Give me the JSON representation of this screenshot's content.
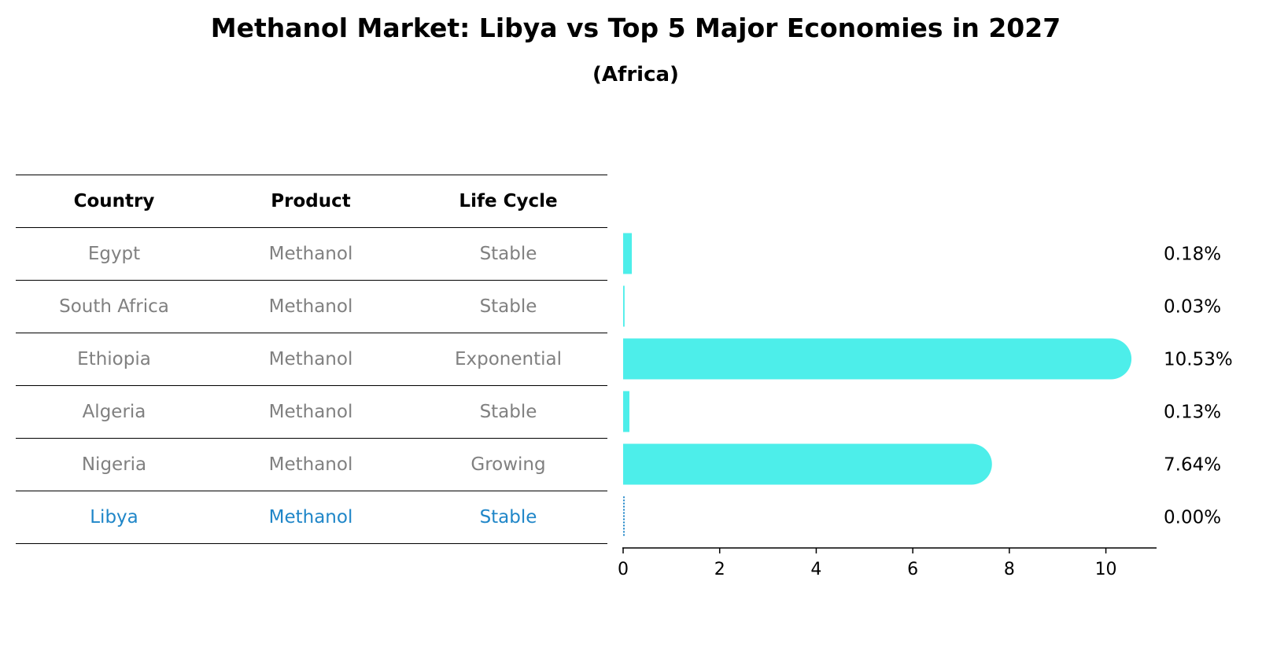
{
  "title": "Methanol Market: Libya vs Top 5 Major Economies in 2027",
  "subtitle": "(Africa)",
  "table": {
    "headers": [
      "Country",
      "Product",
      "Life Cycle"
    ],
    "rows": [
      {
        "country": "Egypt",
        "product": "Methanol",
        "life_cycle": "Stable",
        "highlight": false
      },
      {
        "country": "South Africa",
        "product": "Methanol",
        "life_cycle": "Stable",
        "highlight": false
      },
      {
        "country": "Ethiopia",
        "product": "Methanol",
        "life_cycle": "Exponential",
        "highlight": false
      },
      {
        "country": "Algeria",
        "product": "Methanol",
        "life_cycle": "Stable",
        "highlight": false
      },
      {
        "country": "Nigeria",
        "product": "Methanol",
        "life_cycle": "Growing",
        "highlight": false
      },
      {
        "country": "Libya",
        "product": "Methanol",
        "life_cycle": "Stable",
        "highlight": true
      }
    ]
  },
  "colors": {
    "bar": "#4deeea",
    "highlight_text": "#1f86c8",
    "normal_text": "#808080",
    "libya_bar_edge": "#1f86c8"
  },
  "chart_data": {
    "type": "bar",
    "orientation": "horizontal",
    "categories": [
      "Egypt",
      "South Africa",
      "Ethiopia",
      "Algeria",
      "Nigeria",
      "Libya"
    ],
    "values": [
      0.18,
      0.03,
      10.53,
      0.13,
      7.64,
      0.0
    ],
    "value_labels": [
      "0.18%",
      "0.03%",
      "10.53%",
      "0.13%",
      "7.64%",
      "0.00%"
    ],
    "xlim": [
      0,
      11.05
    ],
    "xticks": [
      0,
      2,
      4,
      6,
      8,
      10
    ],
    "xtick_labels": [
      "0",
      "2",
      "4",
      "6",
      "8",
      "10"
    ],
    "xlabel": "",
    "ylabel": "",
    "grid": false
  }
}
